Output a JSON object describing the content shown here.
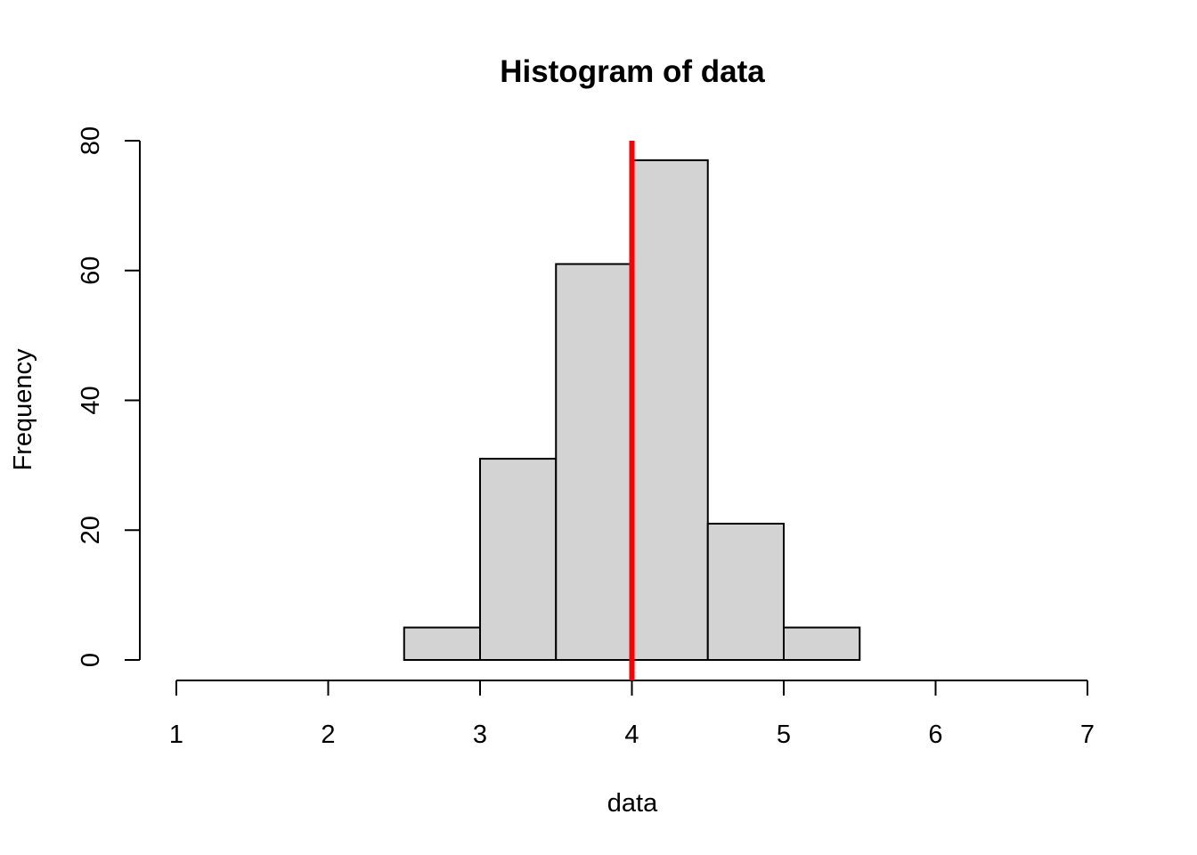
{
  "chart_data": {
    "type": "bar",
    "subtype": "histogram",
    "title": "Histogram of data",
    "xlabel": "data",
    "ylabel": "Frequency",
    "xlim": [
      1,
      7
    ],
    "ylim": [
      0,
      80
    ],
    "x_ticks": [
      "1",
      "2",
      "3",
      "4",
      "5",
      "6",
      "7"
    ],
    "y_ticks": [
      "0",
      "20",
      "40",
      "60",
      "80"
    ],
    "bins": [
      {
        "from": 2.5,
        "to": 3.0,
        "count": 5
      },
      {
        "from": 3.0,
        "to": 3.5,
        "count": 31
      },
      {
        "from": 3.5,
        "to": 4.0,
        "count": 61
      },
      {
        "from": 4.0,
        "to": 4.5,
        "count": 77
      },
      {
        "from": 4.5,
        "to": 5.0,
        "count": 21
      },
      {
        "from": 5.0,
        "to": 5.5,
        "count": 5
      }
    ],
    "reference_line": {
      "x": 4,
      "color": "#ff0000"
    },
    "bar_color": "#d3d3d3",
    "grid": false,
    "legend": "none"
  }
}
